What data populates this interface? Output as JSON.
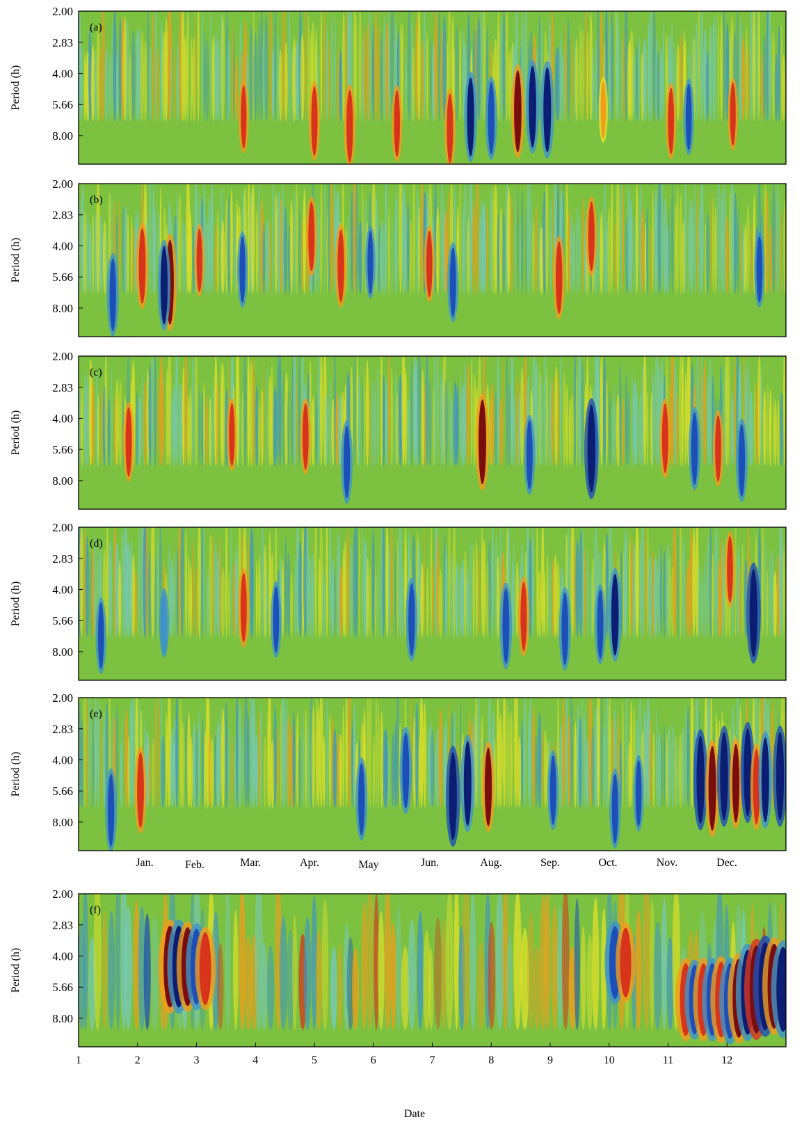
{
  "chart_data": [
    {
      "type": "heatmap",
      "panel_label": "(a)",
      "ylabel": "Period (h)",
      "yticks": [
        "2.00",
        "2.83",
        "4.00",
        "5.66",
        "8.00"
      ],
      "ylim": [
        2,
        11
      ],
      "y_scale": "log2",
      "xticks": [],
      "events": [
        [
          5.0,
          6.8,
          1.0
        ],
        [
          5.6,
          7.2,
          1.1
        ],
        [
          6.4,
          7.0,
          0.9
        ],
        [
          7.3,
          7.4,
          1.0
        ],
        [
          7.65,
          6.5,
          -1.3
        ],
        [
          8.0,
          6.6,
          -1.1
        ],
        [
          8.45,
          6.1,
          1.4
        ],
        [
          8.7,
          5.8,
          -1.4
        ],
        [
          8.95,
          6.0,
          -1.5
        ],
        [
          3.8,
          6.5,
          0.8
        ],
        [
          11.05,
          6.8,
          0.9
        ],
        [
          11.35,
          6.5,
          -0.9
        ],
        [
          12.1,
          6.3,
          0.8
        ],
        [
          9.9,
          6.0,
          0.6
        ]
      ]
    },
    {
      "type": "heatmap",
      "panel_label": "(b)",
      "ylabel": "Period (h)",
      "yticks": [
        "2.00",
        "2.83",
        "4.00",
        "5.66",
        "8.00"
      ],
      "ylim": [
        2,
        11
      ],
      "y_scale": "log2",
      "xticks": [],
      "events": [
        [
          1.58,
          6.9,
          -1.1
        ],
        [
          2.08,
          5.0,
          1.2
        ],
        [
          2.55,
          6.0,
          1.5
        ],
        [
          2.45,
          6.2,
          -1.3
        ],
        [
          3.05,
          4.7,
          0.8
        ],
        [
          3.78,
          5.2,
          -0.9
        ],
        [
          4.95,
          3.6,
          1.0
        ],
        [
          5.45,
          5.0,
          1.1
        ],
        [
          5.95,
          4.8,
          -0.8
        ],
        [
          6.95,
          4.9,
          0.9
        ],
        [
          7.35,
          6.0,
          -1.0
        ],
        [
          9.15,
          5.7,
          1.1
        ],
        [
          9.7,
          3.6,
          1.0
        ],
        [
          12.55,
          5.2,
          -0.9
        ]
      ]
    },
    {
      "type": "heatmap",
      "panel_label": "(c)",
      "ylabel": "Period (h)",
      "yticks": [
        "2.00",
        "2.83",
        "4.00",
        "5.66",
        "8.00"
      ],
      "ylim": [
        2,
        11
      ],
      "y_scale": "log2",
      "xticks": [],
      "events": [
        [
          1.85,
          5.2,
          1.0
        ],
        [
          3.6,
          4.8,
          0.8
        ],
        [
          4.85,
          4.9,
          0.9
        ],
        [
          5.55,
          6.5,
          -1.1
        ],
        [
          7.85,
          5.2,
          1.5
        ],
        [
          8.65,
          6.0,
          -1.0
        ],
        [
          9.7,
          5.6,
          -1.6
        ],
        [
          10.95,
          5.0,
          1.0
        ],
        [
          11.45,
          5.6,
          -1.1
        ],
        [
          11.85,
          5.6,
          0.9
        ],
        [
          12.25,
          6.4,
          -1.1
        ]
      ]
    },
    {
      "type": "heatmap",
      "panel_label": "(d)",
      "ylabel": "Period (h)",
      "yticks": [
        "2.00",
        "2.83",
        "4.00",
        "5.66",
        "8.00"
      ],
      "ylim": [
        2,
        11
      ],
      "y_scale": "log2",
      "xticks": [],
      "events": [
        [
          1.38,
          6.7,
          -0.9
        ],
        [
          2.45,
          5.8,
          -0.7
        ],
        [
          3.8,
          4.9,
          1.0
        ],
        [
          4.35,
          5.6,
          -0.9
        ],
        [
          6.65,
          5.6,
          -1.1
        ],
        [
          8.25,
          6.0,
          -1.2
        ],
        [
          8.55,
          5.4,
          1.0
        ],
        [
          9.25,
          6.2,
          -1.1
        ],
        [
          9.85,
          5.9,
          -1.0
        ],
        [
          10.1,
          5.3,
          -1.4
        ],
        [
          12.05,
          3.2,
          0.9
        ],
        [
          12.45,
          5.2,
          -1.6
        ]
      ]
    },
    {
      "type": "heatmap",
      "panel_label": "(e)",
      "ylabel": "Period (h)",
      "yticks": [
        "2.00",
        "2.83",
        "4.00",
        "5.66",
        "8.00"
      ],
      "ylim": [
        2,
        11
      ],
      "y_scale": "log2",
      "xticks": [
        "Jan.",
        "Feb.",
        "Mar.",
        "Apr.",
        "May",
        "Jun.",
        "Aug.",
        "Sep.",
        "Oct.",
        "Nov.",
        "Dec."
      ],
      "events": [
        [
          1.55,
          7.0,
          -1.1
        ],
        [
          2.05,
          5.6,
          1.2
        ],
        [
          5.8,
          6.2,
          -1.1
        ],
        [
          6.55,
          4.5,
          -1.2
        ],
        [
          7.35,
          6.0,
          -1.6
        ],
        [
          7.6,
          5.2,
          -1.5
        ],
        [
          7.95,
          5.4,
          1.3
        ],
        [
          9.05,
          5.6,
          -1.0
        ],
        [
          10.1,
          6.9,
          -1.0
        ],
        [
          10.5,
          5.8,
          -0.9
        ],
        [
          11.55,
          5.0,
          -1.6
        ],
        [
          11.75,
          5.5,
          1.5
        ],
        [
          11.95,
          4.8,
          -1.6
        ],
        [
          12.15,
          5.2,
          1.3
        ],
        [
          12.35,
          4.6,
          -1.6
        ],
        [
          12.5,
          5.4,
          1.2
        ],
        [
          12.65,
          5.0,
          -1.5
        ],
        [
          12.9,
          4.8,
          -1.6
        ]
      ]
    },
    {
      "type": "heatmap",
      "panel_label": "(f)",
      "ylabel": "Period (h)",
      "xlabel": "Date",
      "yticks": [
        "2.00",
        "2.83",
        "4.00",
        "5.66",
        "8.00"
      ],
      "ylim": [
        2,
        11
      ],
      "y_scale": "log2",
      "xticks": [
        "1",
        "2",
        "3",
        "4",
        "5",
        "6",
        "7",
        "8",
        "9",
        "10",
        "11",
        "12"
      ],
      "events": [
        [
          2.55,
          4.5,
          1.4
        ],
        [
          2.7,
          4.5,
          -1.4
        ],
        [
          2.85,
          4.5,
          1.3
        ],
        [
          3.0,
          4.5,
          -1.2
        ],
        [
          3.15,
          4.6,
          1.1
        ],
        [
          10.1,
          4.3,
          -1.1
        ],
        [
          10.28,
          4.3,
          1.0
        ],
        [
          11.3,
          6.5,
          1.1
        ],
        [
          11.45,
          6.5,
          -1.0
        ],
        [
          11.6,
          6.5,
          1.1
        ],
        [
          11.75,
          6.5,
          -1.1
        ],
        [
          11.9,
          6.5,
          1.2
        ],
        [
          12.05,
          6.6,
          -1.2
        ],
        [
          12.2,
          6.4,
          1.3
        ],
        [
          12.35,
          6.0,
          -1.5
        ],
        [
          12.5,
          5.8,
          1.6
        ],
        [
          12.65,
          5.6,
          -1.6
        ],
        [
          12.8,
          5.6,
          1.5
        ],
        [
          12.95,
          5.8,
          -1.5
        ]
      ]
    }
  ]
}
